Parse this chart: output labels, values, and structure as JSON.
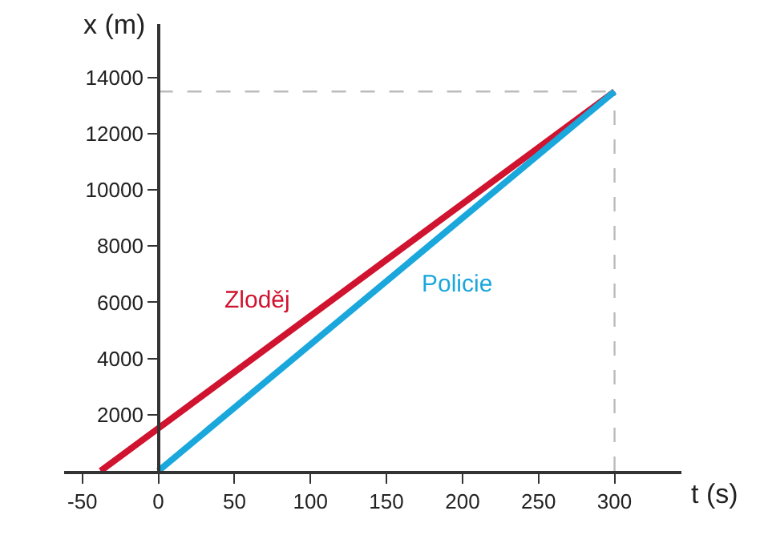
{
  "chart_data": {
    "type": "line",
    "xlabel": "t (s)",
    "ylabel": "x (m)",
    "series": [
      {
        "name": "Zloděj",
        "color": "#d0132f",
        "x": [
          -38,
          300
        ],
        "values": [
          0,
          13500
        ]
      },
      {
        "name": "Policie",
        "color": "#1aa7dc",
        "x": [
          0,
          300
        ],
        "values": [
          0,
          13500
        ]
      }
    ],
    "xlim": [
      -62,
      344
    ],
    "ylim": [
      0,
      15900
    ],
    "xticks": [
      -50,
      0,
      50,
      100,
      150,
      200,
      250,
      300
    ],
    "yticks": [
      2000,
      4000,
      6000,
      8000,
      10000,
      12000,
      14000
    ],
    "ref_lines": [
      {
        "axis": "y",
        "value": 13500,
        "color": "#bbbbbb",
        "line_style": "dashed"
      },
      {
        "axis": "x",
        "value": 300,
        "color": "#bbbbbb",
        "line_style": "dashed"
      }
    ],
    "grid": false,
    "legend": false,
    "marker": "none",
    "line_style": "solid"
  }
}
